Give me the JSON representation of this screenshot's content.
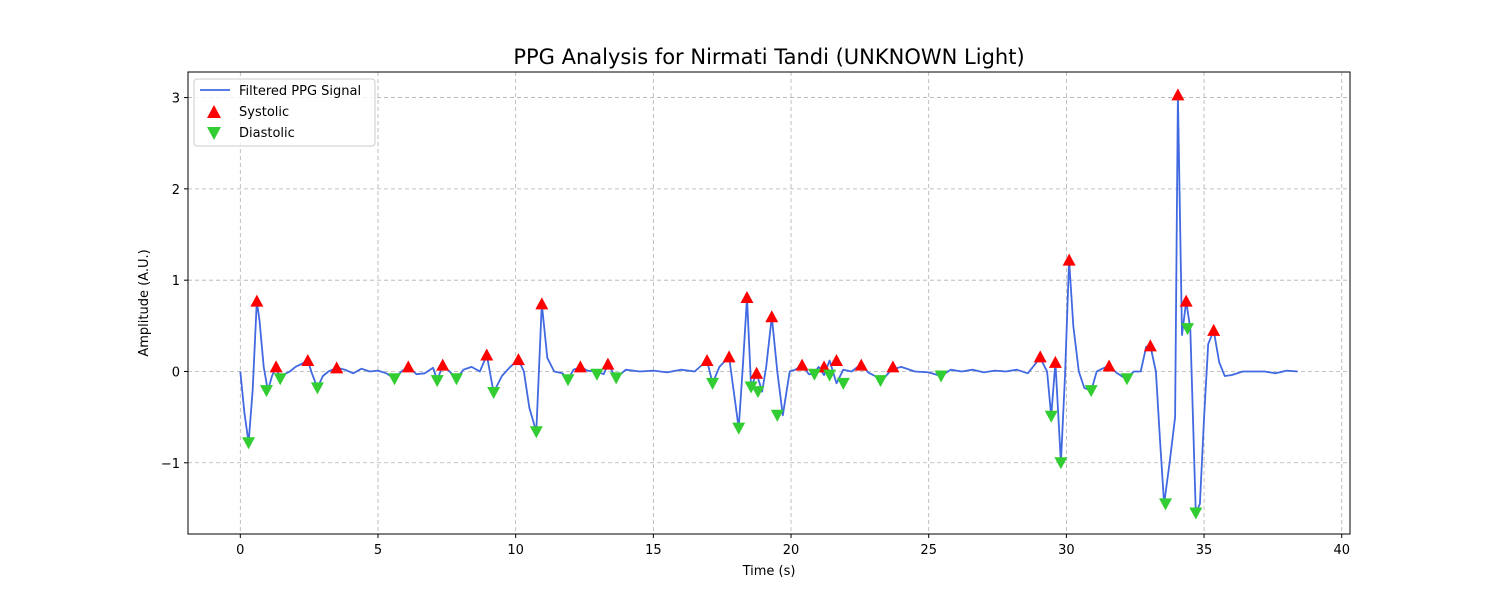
{
  "chart_data": {
    "type": "line",
    "title": "PPG Analysis for Nirmati Tandi (UNKNOWN Light)",
    "xlabel": "Time (s)",
    "ylabel": "Amplitude (A.U.)",
    "xlim": [
      -1.9,
      40.3
    ],
    "ylim": [
      -1.78,
      3.28
    ],
    "xticks": [
      0,
      5,
      10,
      15,
      20,
      25,
      30,
      35,
      40
    ],
    "yticks": [
      -1,
      0,
      1,
      2,
      3
    ],
    "ytick_labels": [
      "−1",
      "0",
      "1",
      "2",
      "3"
    ],
    "grid": true,
    "legend_position": "top-left",
    "colors": {
      "signal": "#4169e1",
      "systolic": "#ff0000",
      "diastolic": "#32cd32"
    },
    "series": [
      {
        "name": "Filtered PPG Signal",
        "kind": "line",
        "x": [
          0,
          0.15,
          0.3,
          0.45,
          0.6,
          0.7,
          0.85,
          1.0,
          1.15,
          1.3,
          1.45,
          1.6,
          1.8,
          2.0,
          2.2,
          2.45,
          2.6,
          2.8,
          3.0,
          3.2,
          3.5,
          3.8,
          4.1,
          4.4,
          4.7,
          5.0,
          5.3,
          5.6,
          5.85,
          6.1,
          6.4,
          6.7,
          7.0,
          7.15,
          7.35,
          7.6,
          7.85,
          8.1,
          8.4,
          8.7,
          8.95,
          9.2,
          9.5,
          9.8,
          10.1,
          10.3,
          10.5,
          10.75,
          10.95,
          11.15,
          11.4,
          11.7,
          11.9,
          12.1,
          12.35,
          12.6,
          12.95,
          13.2,
          13.35,
          13.65,
          14.0,
          14.5,
          15.0,
          15.5,
          16.0,
          16.5,
          16.95,
          17.15,
          17.4,
          17.75,
          18.1,
          18.25,
          18.4,
          18.55,
          18.75,
          18.95,
          19.1,
          19.3,
          19.5,
          19.7,
          19.95,
          20.15,
          20.4,
          20.65,
          20.8,
          21.0,
          21.2,
          21.4,
          21.65,
          21.9,
          22.2,
          22.55,
          22.8,
          23.05,
          23.3,
          23.65,
          24.0,
          24.5,
          25.0,
          25.45,
          25.8,
          26.2,
          26.6,
          27.0,
          27.4,
          27.8,
          28.2,
          28.6,
          29.05,
          29.3,
          29.45,
          29.6,
          29.8,
          29.95,
          30.1,
          30.25,
          30.45,
          30.65,
          30.9,
          31.1,
          31.3,
          31.55,
          31.85,
          32.15,
          32.45,
          32.7,
          32.9,
          33.05,
          33.25,
          33.4,
          33.55,
          33.75,
          33.95,
          34.05,
          34.2,
          34.35,
          34.5,
          34.7,
          34.85,
          35.0,
          35.15,
          35.35,
          35.55,
          35.75,
          36.0,
          36.4,
          36.8,
          37.2,
          37.6,
          38.0,
          38.4
        ],
        "y": [
          0,
          -0.45,
          -0.78,
          -0.2,
          0.77,
          0.55,
          0.05,
          -0.21,
          -0.05,
          0.05,
          -0.08,
          -0.03,
          0.0,
          0.05,
          0.08,
          0.12,
          -0.02,
          -0.18,
          -0.05,
          0.0,
          0.04,
          0.02,
          -0.02,
          0.03,
          0.0,
          0.01,
          -0.02,
          -0.08,
          0.0,
          0.05,
          -0.03,
          -0.02,
          0.04,
          -0.1,
          0.07,
          0.0,
          -0.08,
          0.02,
          0.05,
          0.0,
          0.18,
          -0.23,
          -0.05,
          0.05,
          0.13,
          0.0,
          -0.4,
          -0.66,
          0.74,
          0.15,
          0.0,
          -0.02,
          -0.09,
          0.02,
          0.05,
          0.01,
          0.0,
          -0.03,
          0.08,
          -0.07,
          0.02,
          0.0,
          0.01,
          -0.01,
          0.02,
          0.0,
          0.12,
          -0.13,
          0.05,
          0.16,
          -0.62,
          0.05,
          0.81,
          -0.17,
          -0.02,
          -0.22,
          0.05,
          0.6,
          0.0,
          -0.48,
          0.0,
          0.02,
          0.07,
          -0.03,
          -0.03,
          0.05,
          -0.04,
          0.12,
          -0.13,
          0.02,
          0.0,
          0.08,
          -0.01,
          -0.05,
          -0.1,
          0.02,
          0.05,
          0.0,
          -0.01,
          -0.05,
          0.02,
          0.0,
          0.02,
          -0.01,
          0.01,
          0.0,
          0.02,
          -0.02,
          0.15,
          0.0,
          -0.49,
          0.1,
          -1.0,
          -0.05,
          1.22,
          0.5,
          0.0,
          -0.18,
          -0.21,
          0.0,
          0.03,
          0.06,
          -0.02,
          -0.08,
          0.0,
          0.0,
          0.27,
          0.28,
          0.0,
          -0.75,
          -1.45,
          -1.0,
          -0.5,
          3.03,
          0.4,
          0.77,
          0.47,
          -1.55,
          -1.45,
          -0.5,
          0.3,
          0.45,
          0.1,
          -0.05,
          -0.04,
          0.0,
          0.0,
          0.0,
          -0.02,
          0.01,
          0.0
        ]
      },
      {
        "name": "Systolic",
        "kind": "markers",
        "x": [
          0.6,
          1.3,
          2.45,
          3.5,
          6.1,
          7.35,
          8.95,
          10.1,
          10.95,
          12.35,
          13.35,
          16.95,
          17.75,
          18.4,
          18.75,
          19.3,
          20.4,
          21.2,
          21.65,
          22.55,
          23.7,
          29.05,
          29.6,
          30.1,
          31.55,
          33.05,
          34.05,
          34.35,
          35.35
        ],
        "y": [
          0.77,
          0.05,
          0.12,
          0.04,
          0.05,
          0.07,
          0.18,
          0.13,
          0.74,
          0.05,
          0.08,
          0.12,
          0.16,
          0.81,
          -0.02,
          0.6,
          0.07,
          0.05,
          0.12,
          0.07,
          0.05,
          0.16,
          0.1,
          1.22,
          0.06,
          0.28,
          3.03,
          0.77,
          0.45
        ]
      },
      {
        "name": "Diastolic",
        "kind": "markers",
        "x": [
          0.3,
          0.95,
          1.45,
          2.8,
          5.6,
          7.15,
          7.85,
          9.2,
          10.75,
          11.9,
          12.95,
          13.65,
          17.15,
          18.1,
          18.55,
          18.8,
          19.5,
          20.85,
          21.4,
          21.9,
          23.25,
          25.45,
          29.45,
          29.8,
          30.9,
          32.2,
          33.6,
          34.4,
          34.7
        ],
        "y": [
          -0.78,
          -0.21,
          -0.08,
          -0.18,
          -0.08,
          -0.1,
          -0.08,
          -0.23,
          -0.66,
          -0.09,
          -0.03,
          -0.07,
          -0.13,
          -0.62,
          -0.17,
          -0.22,
          -0.48,
          -0.03,
          -0.04,
          -0.13,
          -0.1,
          -0.05,
          -0.49,
          -1.0,
          -0.21,
          -0.08,
          -1.45,
          0.47,
          -1.55
        ]
      }
    ]
  }
}
